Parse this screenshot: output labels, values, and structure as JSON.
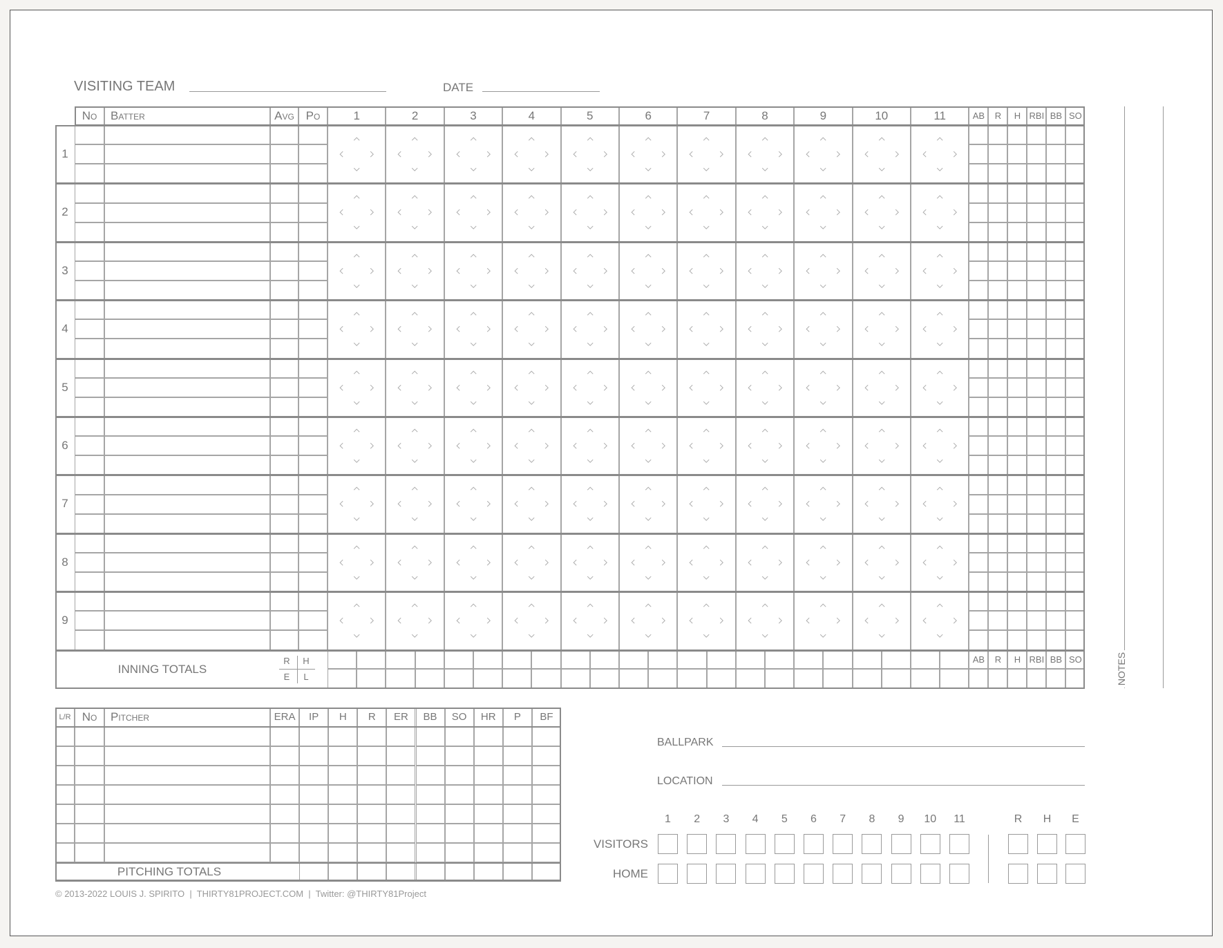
{
  "header": {
    "visiting_team_label": "VISITING TEAM",
    "date_label": "DATE"
  },
  "batting": {
    "columns": {
      "no": "No",
      "batter": "Batter",
      "avg": "Avg",
      "po": "Po"
    },
    "innings": [
      "1",
      "2",
      "3",
      "4",
      "5",
      "6",
      "7",
      "8",
      "9",
      "10",
      "11"
    ],
    "stats": [
      "AB",
      "R",
      "H",
      "RBI",
      "BB",
      "SO"
    ],
    "rows": [
      "1",
      "2",
      "3",
      "4",
      "5",
      "6",
      "7",
      "8",
      "9"
    ],
    "totals_label": "INNING TOTALS",
    "totals_key": {
      "r": "R",
      "h": "H",
      "e": "E",
      "l": "L"
    }
  },
  "notes_label": "NOTES",
  "pitching": {
    "columns": {
      "lr": "L/R",
      "no": "No",
      "pitcher": "Pitcher"
    },
    "stats": [
      "ERA",
      "IP",
      "H",
      "R",
      "ER",
      "BB",
      "SO",
      "HR",
      "P",
      "BF"
    ],
    "row_count": 7,
    "totals_label": "PITCHING TOTALS"
  },
  "game_info": {
    "ballpark_label": "BALLPARK",
    "location_label": "LOCATION"
  },
  "linescore": {
    "innings": [
      "1",
      "2",
      "3",
      "4",
      "5",
      "6",
      "7",
      "8",
      "9",
      "10",
      "11"
    ],
    "totals": [
      "R",
      "H",
      "E"
    ],
    "teams": [
      "VISITORS",
      "HOME"
    ]
  },
  "footer": "© 2013-2022 LOUIS J. SPIRITO  |  THIRTY81PROJECT.COM  |  Twitter: @THIRTY81Project",
  "colors": {
    "lines": "#8a8a8a",
    "text": "#777777",
    "background": "#f5f4f1"
  }
}
